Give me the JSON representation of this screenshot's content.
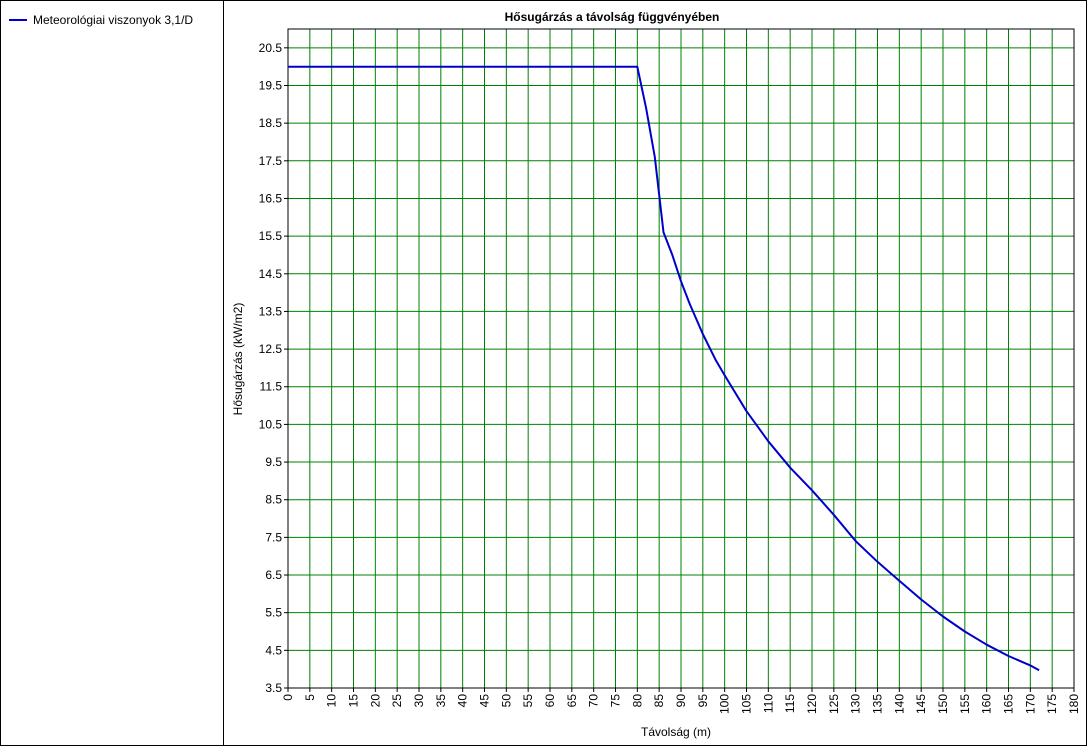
{
  "legend": {
    "entries": [
      {
        "label": "Meteorológiai viszonyok 3,1/D",
        "color": "#0000cc"
      }
    ]
  },
  "chart_data": {
    "type": "line",
    "title": "Hősugárzás a távolság függvényében",
    "xlabel": "Távolság (m)",
    "ylabel": "Hősugárzás (kW/m2)",
    "xlim": [
      0,
      180
    ],
    "ylim": [
      3.5,
      21
    ],
    "x_ticks": [
      0,
      5,
      10,
      15,
      20,
      25,
      30,
      35,
      40,
      45,
      50,
      55,
      60,
      65,
      70,
      75,
      80,
      85,
      90,
      95,
      100,
      105,
      110,
      115,
      120,
      125,
      130,
      135,
      140,
      145,
      150,
      155,
      160,
      165,
      170,
      175,
      180
    ],
    "y_ticks": [
      3.5,
      4.5,
      5.5,
      6.5,
      7.5,
      8.5,
      9.5,
      10.5,
      11.5,
      12.5,
      13.5,
      14.5,
      15.5,
      16.5,
      17.5,
      18.5,
      19.5,
      20.5
    ],
    "grid": true,
    "grid_color": "#008000",
    "series": [
      {
        "name": "Meteorológiai viszonyok 3,1/D",
        "color": "#0000cc",
        "x": [
          0,
          80,
          82,
          84,
          86,
          88,
          90,
          92,
          95,
          98,
          100,
          105,
          110,
          115,
          120,
          125,
          130,
          135,
          140,
          145,
          150,
          155,
          160,
          165,
          170,
          172
        ],
        "y": [
          20,
          20,
          18.9,
          17.6,
          15.6,
          15.0,
          14.3,
          13.7,
          12.9,
          12.2,
          11.8,
          10.85,
          10.05,
          9.35,
          8.75,
          8.1,
          7.4,
          6.85,
          6.35,
          5.85,
          5.4,
          5.0,
          4.65,
          4.35,
          4.1,
          3.97
        ]
      }
    ]
  }
}
